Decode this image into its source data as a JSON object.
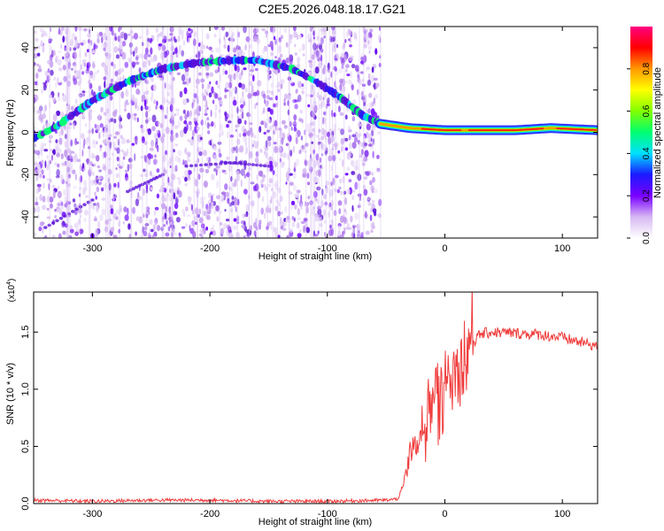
{
  "title": "C2E5.2026.048.18.17.G21",
  "chart_data": [
    {
      "type": "heatmap",
      "xlabel": "Height of straight line (km)",
      "ylabel": "Frequency (Hz)",
      "xlim": [
        -350,
        130
      ],
      "ylim": [
        -50,
        50
      ],
      "xticks": [
        -300,
        -200,
        -100,
        0,
        100
      ],
      "yticks": [
        -40,
        -20,
        0,
        20,
        40
      ],
      "colorbar": {
        "label": "Normalized spectral amplitude",
        "range": [
          0,
          1
        ],
        "ticks": [
          "0.0",
          "0.2",
          "0.4",
          "0.6",
          "0.8"
        ],
        "colors": [
          "#ffffff",
          "#d7b8f3",
          "#7a00ff",
          "#1a1aff",
          "#00e0ff",
          "#00ff70",
          "#80ff00",
          "#ffff00",
          "#ff9900",
          "#ff0000",
          "#ff0080"
        ]
      },
      "features": {
        "arc": {
          "x": [
            -350,
            -330,
            -300,
            -270,
            -240,
            -210,
            -180,
            -160,
            -130,
            -110,
            -90,
            -70,
            -55
          ],
          "y": [
            -3,
            3,
            15,
            24,
            30,
            33,
            34,
            34,
            30,
            24,
            17,
            8,
            4
          ]
        },
        "tone": {
          "x": [
            -55,
            -30,
            0,
            30,
            60,
            90,
            130
          ],
          "y": [
            4,
            2,
            1,
            1,
            1,
            2,
            1
          ]
        },
        "noise_end_x": -55
      }
    },
    {
      "type": "line",
      "xlabel": "Height of straight line (km)",
      "ylabel": "SNR (10 * v/v)",
      "y_multiplier": "(x10",
      "y_multiplier_exp": "4",
      "y_multiplier_close": ")",
      "xlim": [
        -350,
        130
      ],
      "ylim": [
        0,
        1.85
      ],
      "xticks": [
        -300,
        -200,
        -100,
        0,
        100
      ],
      "yticks": [
        "0.0",
        "0.5",
        "1.0",
        "1.5"
      ],
      "series": [
        {
          "color": "#f03c3c",
          "x": [
            -350,
            -300,
            -250,
            -200,
            -150,
            -100,
            -50,
            -40,
            -35,
            -30,
            -25,
            -20,
            -15,
            -10,
            -5,
            0,
            5,
            8,
            12,
            15,
            20,
            25,
            30,
            40,
            60,
            80,
            100,
            120,
            130
          ],
          "y": [
            0.03,
            0.02,
            0.03,
            0.03,
            0.02,
            0.02,
            0.03,
            0.04,
            0.15,
            0.4,
            0.55,
            0.7,
            0.8,
            0.9,
            0.85,
            1.0,
            0.95,
            1.2,
            1.1,
            1.3,
            1.35,
            1.42,
            1.48,
            1.5,
            1.49,
            1.48,
            1.45,
            1.4,
            1.38
          ]
        }
      ]
    }
  ]
}
